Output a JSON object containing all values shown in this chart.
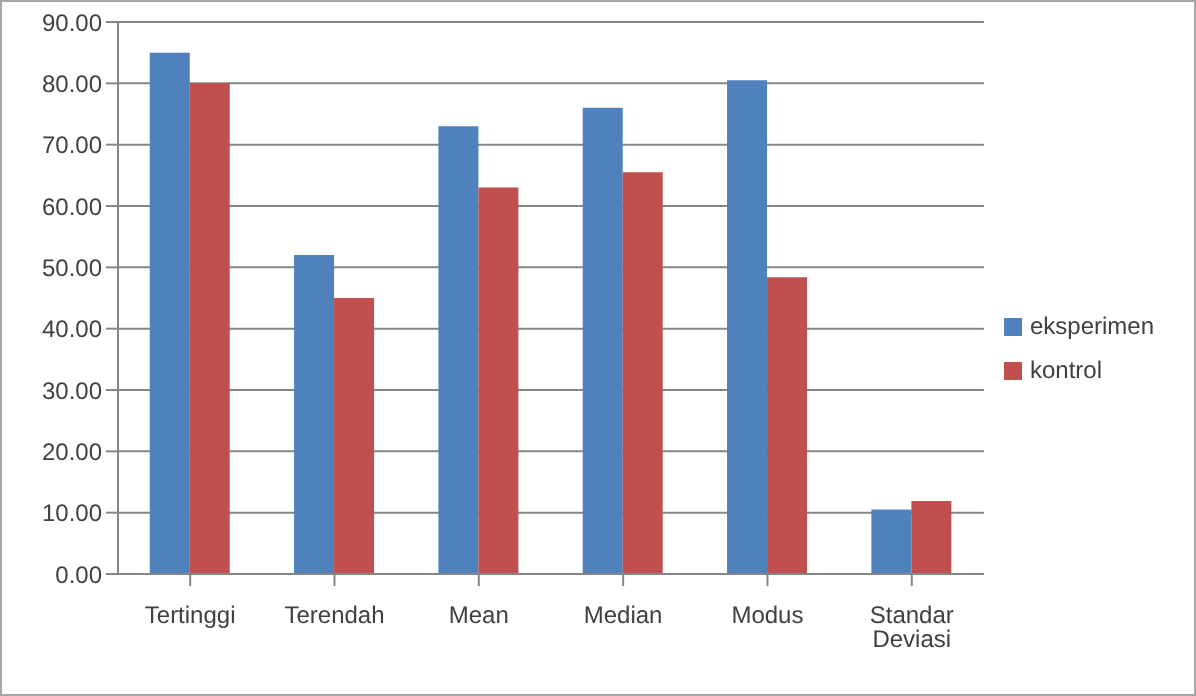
{
  "chart_data": {
    "type": "bar",
    "categories": [
      "Tertinggi",
      "Terendah",
      "Mean",
      "Median",
      "Modus",
      "Standar Deviasi"
    ],
    "series": [
      {
        "name": "eksperimen",
        "color": "#4f81bd",
        "values": [
          85,
          52,
          73,
          76,
          80.5,
          10.5
        ]
      },
      {
        "name": "kontrol",
        "color": "#c0504d",
        "values": [
          80,
          45,
          63,
          65.5,
          48.4,
          11.9
        ]
      }
    ],
    "ylim": [
      0,
      90
    ],
    "yticks": [
      {
        "value": 0,
        "label": "0.00"
      },
      {
        "value": 10,
        "label": "10.00"
      },
      {
        "value": 20,
        "label": "20.00"
      },
      {
        "value": 30,
        "label": "30.00"
      },
      {
        "value": 40,
        "label": "40.00"
      },
      {
        "value": 50,
        "label": "50.00"
      },
      {
        "value": 60,
        "label": "60.00"
      },
      {
        "value": 70,
        "label": "70.00"
      },
      {
        "value": 80,
        "label": "80.00"
      },
      {
        "value": 90,
        "label": "90.00"
      }
    ],
    "grid": "y",
    "legend": "right"
  }
}
